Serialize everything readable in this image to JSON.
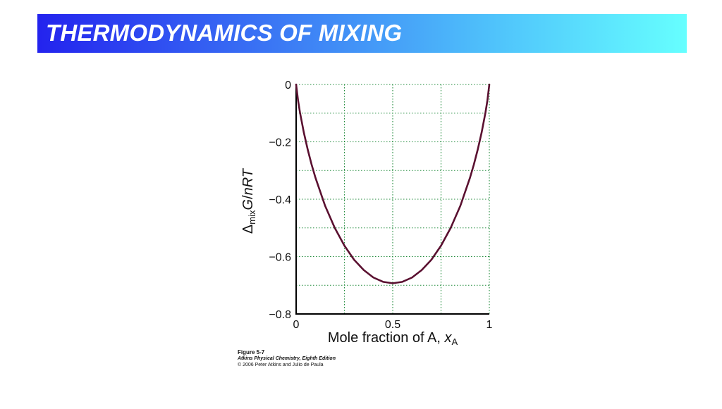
{
  "slide": {
    "title": "THERMODYNAMICS OF MIXING"
  },
  "caption": {
    "figure": "Figure 5-7",
    "book": "Atkins Physical Chemistry, Eighth Edition",
    "copyright": "© 2006 Peter Atkins and Julio de Paula"
  },
  "chart_data": {
    "type": "line",
    "xlabel": "Mole fraction of A, x_A",
    "ylabel": "Δ_mix G/nRT",
    "xlim": [
      0,
      1
    ],
    "ylim": [
      -0.8,
      0
    ],
    "x_ticks": [
      "0",
      "0.5",
      "1"
    ],
    "y_ticks": [
      "0",
      "−0.2",
      "−0.4",
      "−0.6",
      "−0.8"
    ],
    "grid": true,
    "series": [
      {
        "color": "#5a1030",
        "x": [
          0,
          0.01,
          0.02,
          0.04,
          0.06,
          0.08,
          0.1,
          0.15,
          0.2,
          0.25,
          0.3,
          0.35,
          0.4,
          0.45,
          0.5,
          0.55,
          0.6,
          0.65,
          0.7,
          0.75,
          0.8,
          0.85,
          0.9,
          0.92,
          0.94,
          0.96,
          0.98,
          0.99,
          1
        ],
        "y": [
          0,
          -0.056,
          -0.098,
          -0.168,
          -0.227,
          -0.279,
          -0.325,
          -0.423,
          -0.5,
          -0.562,
          -0.611,
          -0.647,
          -0.673,
          -0.688,
          -0.693,
          -0.688,
          -0.673,
          -0.647,
          -0.611,
          -0.562,
          -0.5,
          -0.423,
          -0.325,
          -0.279,
          -0.227,
          -0.168,
          -0.098,
          -0.056,
          0
        ]
      }
    ]
  }
}
